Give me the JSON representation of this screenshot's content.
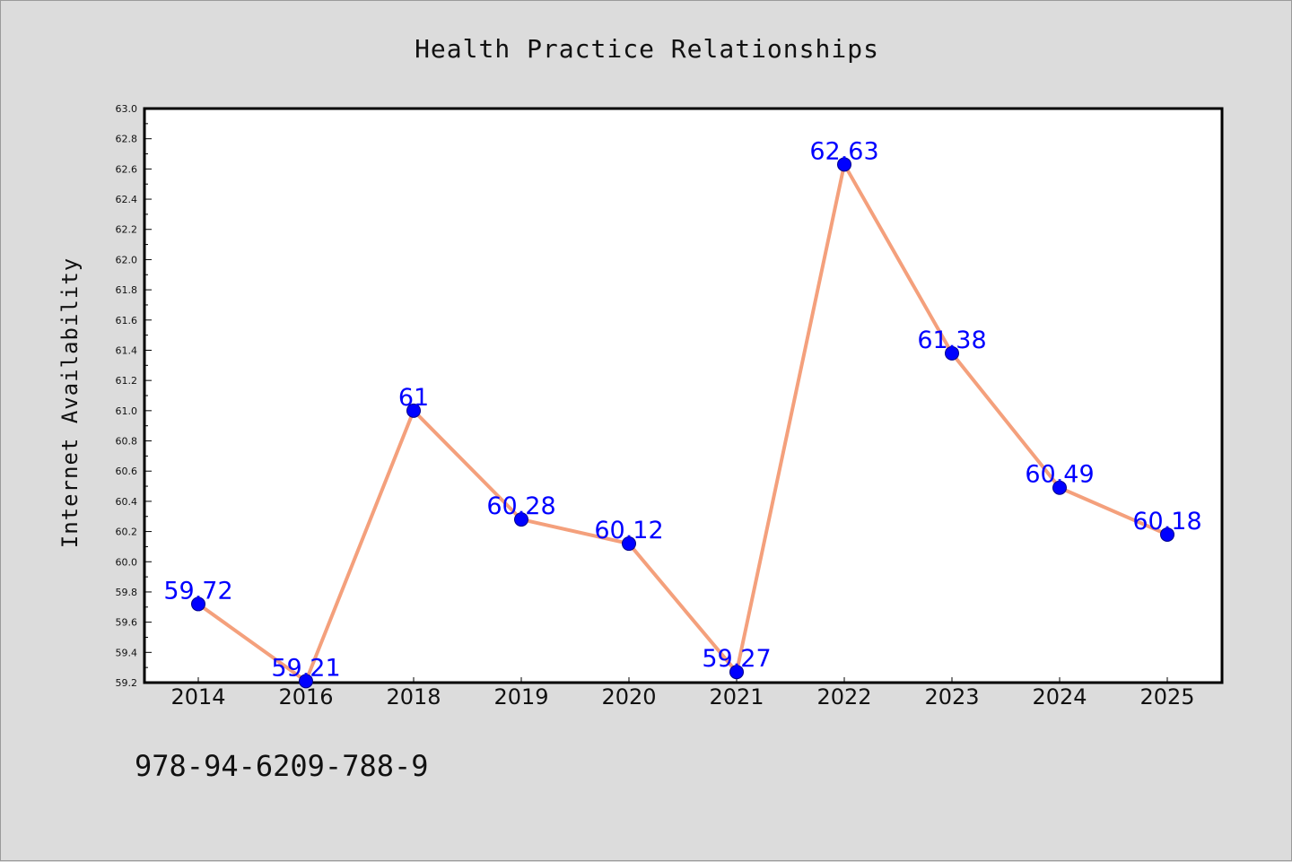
{
  "chart_data": {
    "type": "line",
    "title": "Health Practice Relationships",
    "xlabel": "",
    "ylabel": "Internet Availability",
    "categories": [
      "2014",
      "2016",
      "2018",
      "2019",
      "2020",
      "2021",
      "2022",
      "2023",
      "2024",
      "2025"
    ],
    "series": [
      {
        "values": [
          59.72,
          59.21,
          61,
          60.28,
          60.12,
          59.27,
          62.63,
          61.38,
          60.49,
          60.18
        ],
        "labels": [
          "59.72",
          "59.21",
          "61",
          "60.28",
          "60.12",
          "59.27",
          "62.63",
          "61.38",
          "60.49",
          "60.18"
        ],
        "line_color": "#f4a07c",
        "marker_color": "#0000ff"
      }
    ],
    "ylim": [
      59.2,
      63.0
    ],
    "yticks": [
      "59.2",
      "59.4",
      "59.6",
      "59.8",
      "60.0",
      "60.2",
      "60.4",
      "60.6",
      "60.8",
      "61.0",
      "61.2",
      "61.4",
      "61.6",
      "61.8",
      "62.0",
      "62.2",
      "62.4",
      "62.6",
      "62.8",
      "63.0"
    ],
    "grid": false,
    "legend": "none"
  },
  "footer": {
    "isbn": "978-94-6209-788-9"
  }
}
